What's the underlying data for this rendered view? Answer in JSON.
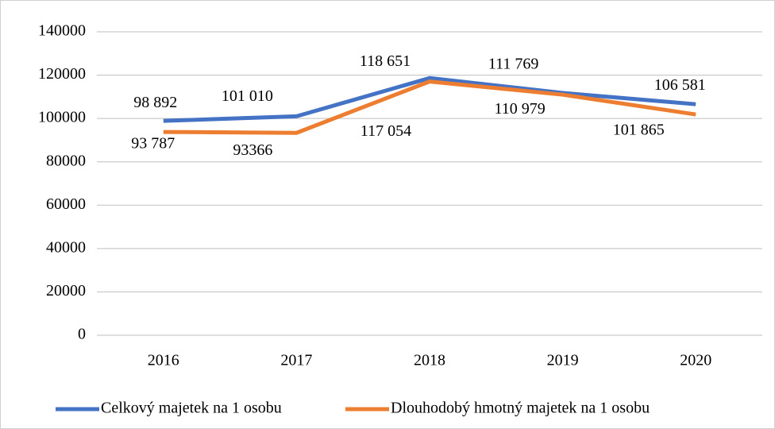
{
  "chart_data": {
    "type": "line",
    "categories": [
      "2016",
      "2017",
      "2018",
      "2019",
      "2020"
    ],
    "series": [
      {
        "name": "Celkový majetek na 1 osobu",
        "color": "#4472c4",
        "values": [
          98892,
          101010,
          118651,
          111769,
          106581
        ],
        "value_labels": [
          "98 892",
          "101 010",
          "118 651",
          "111 769",
          "106 581"
        ]
      },
      {
        "name": "Dlouhodobý hmotný majetek na 1 osobu",
        "color": "#ed7d31",
        "values": [
          93787,
          93366,
          117054,
          110979,
          101865
        ],
        "value_labels": [
          "93 787",
          "93366",
          "117 054",
          "110 979",
          "101 865"
        ]
      }
    ],
    "ylim": [
      0,
      140000
    ],
    "yticks": [
      0,
      20000,
      40000,
      60000,
      80000,
      100000,
      120000,
      140000
    ],
    "grid": true,
    "legend": "bottom"
  }
}
